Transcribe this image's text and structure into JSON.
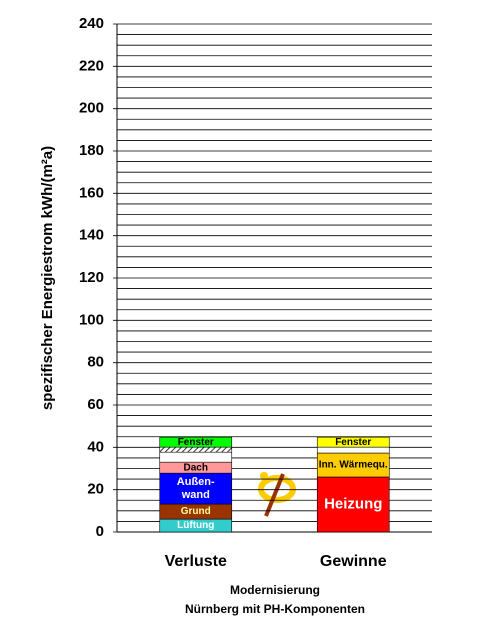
{
  "chart_data": {
    "type": "stacked-bar",
    "y_label": "spezifischer Energiestrom kWh/(m²a)",
    "footer": [
      "Modernisierung",
      "Nürnberg mit PH-Komponenten"
    ],
    "ylim": [
      0,
      240
    ],
    "yticks": [
      0,
      20,
      40,
      60,
      80,
      100,
      120,
      140,
      160,
      180,
      200,
      220,
      240
    ],
    "minor_yticks": [
      5,
      10,
      15,
      25,
      30,
      35,
      45,
      50,
      55,
      65,
      70,
      75,
      85,
      90,
      95,
      105,
      110,
      115,
      125,
      130,
      135,
      145,
      150,
      155,
      165,
      170,
      175,
      185,
      190,
      195,
      205,
      210,
      215,
      225,
      230,
      235
    ],
    "grid": true,
    "bars": [
      {
        "category": "Verluste",
        "segments": [
          {
            "label": [
              "Lüftung"
            ],
            "value": 6.1,
            "color": "#33cccc",
            "text_color": "#ffffff"
          },
          {
            "label": [
              "Grund"
            ],
            "value": 7.1,
            "color": "#993300",
            "text_color": "#ffff99"
          },
          {
            "label": [
              "Außen-",
              "wand"
            ],
            "value": 14.6,
            "color": "#0000ff",
            "text_color": "#ffffff"
          },
          {
            "label": [
              "Dach"
            ],
            "value": 5.2,
            "color": "#ff9999",
            "text_color": "#000000"
          },
          {
            "label": null,
            "value": 4.7,
            "color": "#ffffff",
            "text_color": "#000000"
          },
          {
            "label": null,
            "value": 2.4,
            "color": "#888888",
            "text_color": "#000000",
            "hatched": true
          },
          {
            "label": [
              "Fenster"
            ],
            "value": 4.7,
            "color": "#00ff00",
            "text_color": "#000000"
          }
        ]
      },
      {
        "category": "Gewinne",
        "segments": [
          {
            "label": [
              "Heizung"
            ],
            "value": 26,
            "color": "#ff0000",
            "text_color": "#ffffff",
            "big": true
          },
          {
            "label": [
              "Inn. Wärmequ."
            ],
            "value": 11.3,
            "color": "#ffcc00",
            "text_color": "#000000"
          },
          {
            "label": null,
            "value": 2.8,
            "color": "#ffffff",
            "text_color": "#000000"
          },
          {
            "label": [
              "Fenster"
            ],
            "value": 4.7,
            "color": "#ffff00",
            "text_color": "#000000"
          }
        ]
      }
    ]
  }
}
